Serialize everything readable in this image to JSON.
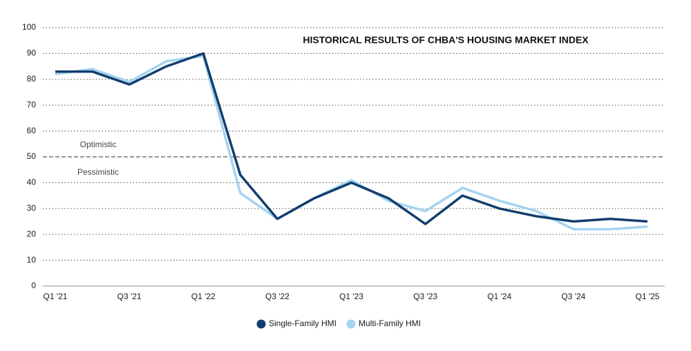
{
  "chart_data": {
    "type": "line",
    "title": "HISTORICAL RESULTS OF CHBA'S HOUSING MARKET INDEX",
    "categories": [
      "Q1 '21",
      null,
      "Q3 '21",
      null,
      "Q1 '22",
      null,
      "Q3 '22",
      null,
      "Q1 '23",
      null,
      "Q3 '23",
      null,
      "Q1 '24",
      null,
      "Q3 '24",
      null,
      "Q1 '25"
    ],
    "series": [
      {
        "name": "Single-Family HMI",
        "color": "#123e6e",
        "values": [
          83,
          83,
          78,
          85,
          90,
          43,
          26,
          34,
          40,
          34,
          24,
          35,
          30,
          27,
          25,
          26,
          25
        ]
      },
      {
        "name": "Multi-Family HMI",
        "color": "#a3d4f0",
        "values": [
          82,
          84,
          79,
          87,
          89,
          36,
          26,
          34,
          41,
          33,
          29,
          38,
          33,
          29,
          22,
          22,
          23
        ]
      }
    ],
    "ylim": [
      0,
      100
    ],
    "yticks": [
      0,
      10,
      20,
      30,
      40,
      50,
      60,
      70,
      80,
      90,
      100
    ],
    "grid": true,
    "threshold": 50,
    "threshold_labels": [
      "Optimistic",
      "Pessimistic"
    ],
    "legend": "bottom"
  }
}
